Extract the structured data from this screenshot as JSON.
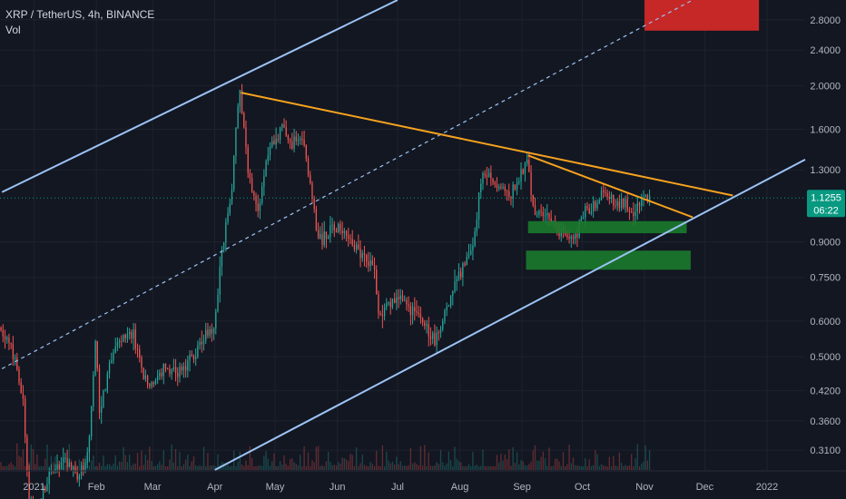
{
  "header": {
    "title": "XRP / TetherUS, 4h, BINANCE",
    "indicator": "Vol"
  },
  "colors": {
    "background": "#131722",
    "up": "#26a69a",
    "down": "#ef5350",
    "channel": "#9cc3f5",
    "trendline": "#f6a21e",
    "zone_green": "#1b7a2c",
    "zone_red": "#c62828",
    "price_tag": "#089981",
    "axis_text": "#b2b5be"
  },
  "price_tag": {
    "price": "1.1255",
    "countdown": "06:22"
  },
  "chart_data": {
    "type": "candlestick",
    "title": "XRP / TetherUS, 4h, BINANCE",
    "y_scale": "log",
    "ylim": [
      0.28,
      3.1
    ],
    "xlim": [
      "2020-12-15",
      "2022-01-20"
    ],
    "x_ticks": [
      {
        "date": "2021-01-01",
        "label": "2021"
      },
      {
        "date": "2021-02-01",
        "label": "Feb"
      },
      {
        "date": "2021-03-01",
        "label": "Mar"
      },
      {
        "date": "2021-04-01",
        "label": "Apr"
      },
      {
        "date": "2021-05-01",
        "label": "May"
      },
      {
        "date": "2021-06-01",
        "label": "Jun"
      },
      {
        "date": "2021-07-01",
        "label": "Jul"
      },
      {
        "date": "2021-08-01",
        "label": "Aug"
      },
      {
        "date": "2021-09-01",
        "label": "Sep"
      },
      {
        "date": "2021-10-01",
        "label": "Oct"
      },
      {
        "date": "2021-11-01",
        "label": "Nov"
      },
      {
        "date": "2021-12-01",
        "label": "Dec"
      },
      {
        "date": "2022-01-01",
        "label": "2022"
      }
    ],
    "y_ticks": [
      {
        "value": 2.8,
        "label": "2.8000"
      },
      {
        "value": 2.4,
        "label": "2.4000"
      },
      {
        "value": 2.0,
        "label": "2.0000"
      },
      {
        "value": 1.6,
        "label": "1.6000"
      },
      {
        "value": 1.3,
        "label": "1.3000"
      },
      {
        "value": 0.9,
        "label": "0.9000"
      },
      {
        "value": 0.75,
        "label": "0.7500"
      },
      {
        "value": 0.6,
        "label": "0.6000"
      },
      {
        "value": 0.5,
        "label": "0.5000"
      },
      {
        "value": 0.42,
        "label": "0.4200"
      },
      {
        "value": 0.36,
        "label": "0.3600"
      },
      {
        "value": 0.31,
        "label": "0.3100"
      }
    ],
    "last_price": 1.1255,
    "price_path": [
      [
        "2020-12-15",
        0.58
      ],
      [
        "2020-12-20",
        0.55
      ],
      [
        "2020-12-24",
        0.47
      ],
      [
        "2020-12-27",
        0.4
      ],
      [
        "2020-12-30",
        0.24
      ],
      [
        "2021-01-03",
        0.23
      ],
      [
        "2021-01-10",
        0.28
      ],
      [
        "2021-01-17",
        0.29
      ],
      [
        "2021-01-24",
        0.27
      ],
      [
        "2021-01-29",
        0.32
      ],
      [
        "2021-02-01",
        0.55
      ],
      [
        "2021-02-03",
        0.38
      ],
      [
        "2021-02-10",
        0.52
      ],
      [
        "2021-02-15",
        0.55
      ],
      [
        "2021-02-20",
        0.56
      ],
      [
        "2021-02-25",
        0.45
      ],
      [
        "2021-03-01",
        0.43
      ],
      [
        "2021-03-07",
        0.47
      ],
      [
        "2021-03-15",
        0.46
      ],
      [
        "2021-03-22",
        0.5
      ],
      [
        "2021-03-28",
        0.56
      ],
      [
        "2021-04-01",
        0.58
      ],
      [
        "2021-04-05",
        0.85
      ],
      [
        "2021-04-10",
        1.2
      ],
      [
        "2021-04-13",
        1.8
      ],
      [
        "2021-04-14",
        1.93
      ],
      [
        "2021-04-18",
        1.3
      ],
      [
        "2021-04-23",
        1.02
      ],
      [
        "2021-04-28",
        1.45
      ],
      [
        "2021-05-05",
        1.6
      ],
      [
        "2021-05-10",
        1.5
      ],
      [
        "2021-05-15",
        1.55
      ],
      [
        "2021-05-19",
        1.2
      ],
      [
        "2021-05-23",
        0.9
      ],
      [
        "2021-05-30",
        0.95
      ],
      [
        "2021-06-05",
        0.97
      ],
      [
        "2021-06-12",
        0.85
      ],
      [
        "2021-06-20",
        0.8
      ],
      [
        "2021-06-22",
        0.62
      ],
      [
        "2021-07-01",
        0.68
      ],
      [
        "2021-07-08",
        0.64
      ],
      [
        "2021-07-14",
        0.6
      ],
      [
        "2021-07-20",
        0.54
      ],
      [
        "2021-07-25",
        0.62
      ],
      [
        "2021-08-01",
        0.75
      ],
      [
        "2021-08-08",
        0.9
      ],
      [
        "2021-08-13",
        1.3
      ],
      [
        "2021-08-20",
        1.2
      ],
      [
        "2021-08-27",
        1.15
      ],
      [
        "2021-09-04",
        1.35
      ],
      [
        "2021-09-07",
        1.05
      ],
      [
        "2021-09-12",
        1.05
      ],
      [
        "2021-09-20",
        0.95
      ],
      [
        "2021-09-28",
        0.92
      ],
      [
        "2021-10-03",
        1.05
      ],
      [
        "2021-10-08",
        1.1
      ],
      [
        "2021-10-12",
        1.18
      ],
      [
        "2021-10-18",
        1.1
      ],
      [
        "2021-10-24",
        1.08
      ],
      [
        "2021-10-28",
        1.05
      ],
      [
        "2021-11-01",
        1.12
      ],
      [
        "2021-11-03",
        1.1255
      ]
    ],
    "annotations": {
      "channel_upper": [
        [
          "2020-12-16",
          1.16
        ],
        [
          "2021-07-01",
          3.1
        ]
      ],
      "channel_middle_dashed": [
        [
          "2020-12-16",
          0.47
        ],
        [
          "2021-11-25",
          3.1
        ]
      ],
      "channel_lower": [
        [
          "2021-04-01",
          0.28
        ],
        [
          "2022-01-20",
          1.37
        ]
      ],
      "trendline_major": [
        [
          "2021-04-14",
          1.93
        ],
        [
          "2021-12-15",
          1.14
        ]
      ],
      "trendline_minor": [
        [
          "2021-09-04",
          1.4
        ],
        [
          "2021-11-25",
          1.02
        ]
      ],
      "support_zones": [
        {
          "from": "2021-09-04",
          "to": "2021-11-22",
          "high": 1.0,
          "low": 0.94
        },
        {
          "from": "2021-09-03",
          "to": "2021-11-24",
          "high": 0.86,
          "low": 0.78
        }
      ],
      "resistance_zone": {
        "from": "2021-11-01",
        "to": "2021-12-28",
        "high": 3.1,
        "low": 2.65
      }
    }
  }
}
